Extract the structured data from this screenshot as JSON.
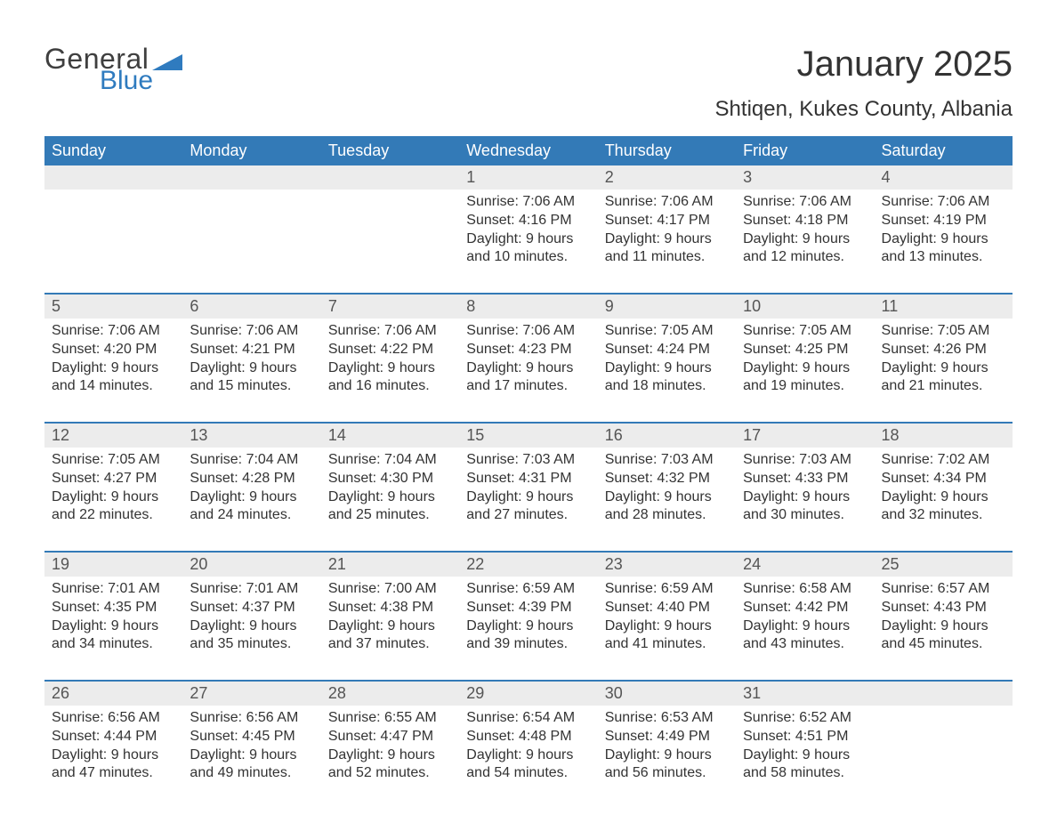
{
  "logo": {
    "line1": "General",
    "line2": "Blue",
    "shape_color": "#2f7bbf"
  },
  "title": {
    "month_year": "January 2025",
    "location": "Shtiqen, Kukes County, Albania"
  },
  "colors": {
    "header_bg": "#337ab7",
    "header_text": "#ffffff",
    "daynum_bg": "#ececec",
    "week_border": "#337ab7",
    "body_text": "#333333",
    "logo_gray": "#3f3f3f",
    "logo_blue": "#2f7bbf",
    "page_bg": "#ffffff"
  },
  "fonts": {
    "title_month_pt": 40,
    "title_location_pt": 24,
    "dow_pt": 18,
    "daynum_pt": 18,
    "body_pt": 16,
    "logo_pt": 32
  },
  "days_of_week": [
    "Sunday",
    "Monday",
    "Tuesday",
    "Wednesday",
    "Thursday",
    "Friday",
    "Saturday"
  ],
  "labels": {
    "sunrise": "Sunrise: ",
    "sunset": "Sunset: ",
    "daylight": "Daylight: "
  },
  "weeks": [
    {
      "days": [
        null,
        null,
        null,
        {
          "n": "1",
          "sunrise": "7:06 AM",
          "sunset": "4:16 PM",
          "daylight": "9 hours and 10 minutes."
        },
        {
          "n": "2",
          "sunrise": "7:06 AM",
          "sunset": "4:17 PM",
          "daylight": "9 hours and 11 minutes."
        },
        {
          "n": "3",
          "sunrise": "7:06 AM",
          "sunset": "4:18 PM",
          "daylight": "9 hours and 12 minutes."
        },
        {
          "n": "4",
          "sunrise": "7:06 AM",
          "sunset": "4:19 PM",
          "daylight": "9 hours and 13 minutes."
        }
      ]
    },
    {
      "days": [
        {
          "n": "5",
          "sunrise": "7:06 AM",
          "sunset": "4:20 PM",
          "daylight": "9 hours and 14 minutes."
        },
        {
          "n": "6",
          "sunrise": "7:06 AM",
          "sunset": "4:21 PM",
          "daylight": "9 hours and 15 minutes."
        },
        {
          "n": "7",
          "sunrise": "7:06 AM",
          "sunset": "4:22 PM",
          "daylight": "9 hours and 16 minutes."
        },
        {
          "n": "8",
          "sunrise": "7:06 AM",
          "sunset": "4:23 PM",
          "daylight": "9 hours and 17 minutes."
        },
        {
          "n": "9",
          "sunrise": "7:05 AM",
          "sunset": "4:24 PM",
          "daylight": "9 hours and 18 minutes."
        },
        {
          "n": "10",
          "sunrise": "7:05 AM",
          "sunset": "4:25 PM",
          "daylight": "9 hours and 19 minutes."
        },
        {
          "n": "11",
          "sunrise": "7:05 AM",
          "sunset": "4:26 PM",
          "daylight": "9 hours and 21 minutes."
        }
      ]
    },
    {
      "days": [
        {
          "n": "12",
          "sunrise": "7:05 AM",
          "sunset": "4:27 PM",
          "daylight": "9 hours and 22 minutes."
        },
        {
          "n": "13",
          "sunrise": "7:04 AM",
          "sunset": "4:28 PM",
          "daylight": "9 hours and 24 minutes."
        },
        {
          "n": "14",
          "sunrise": "7:04 AM",
          "sunset": "4:30 PM",
          "daylight": "9 hours and 25 minutes."
        },
        {
          "n": "15",
          "sunrise": "7:03 AM",
          "sunset": "4:31 PM",
          "daylight": "9 hours and 27 minutes."
        },
        {
          "n": "16",
          "sunrise": "7:03 AM",
          "sunset": "4:32 PM",
          "daylight": "9 hours and 28 minutes."
        },
        {
          "n": "17",
          "sunrise": "7:03 AM",
          "sunset": "4:33 PM",
          "daylight": "9 hours and 30 minutes."
        },
        {
          "n": "18",
          "sunrise": "7:02 AM",
          "sunset": "4:34 PM",
          "daylight": "9 hours and 32 minutes."
        }
      ]
    },
    {
      "days": [
        {
          "n": "19",
          "sunrise": "7:01 AM",
          "sunset": "4:35 PM",
          "daylight": "9 hours and 34 minutes."
        },
        {
          "n": "20",
          "sunrise": "7:01 AM",
          "sunset": "4:37 PM",
          "daylight": "9 hours and 35 minutes."
        },
        {
          "n": "21",
          "sunrise": "7:00 AM",
          "sunset": "4:38 PM",
          "daylight": "9 hours and 37 minutes."
        },
        {
          "n": "22",
          "sunrise": "6:59 AM",
          "sunset": "4:39 PM",
          "daylight": "9 hours and 39 minutes."
        },
        {
          "n": "23",
          "sunrise": "6:59 AM",
          "sunset": "4:40 PM",
          "daylight": "9 hours and 41 minutes."
        },
        {
          "n": "24",
          "sunrise": "6:58 AM",
          "sunset": "4:42 PM",
          "daylight": "9 hours and 43 minutes."
        },
        {
          "n": "25",
          "sunrise": "6:57 AM",
          "sunset": "4:43 PM",
          "daylight": "9 hours and 45 minutes."
        }
      ]
    },
    {
      "days": [
        {
          "n": "26",
          "sunrise": "6:56 AM",
          "sunset": "4:44 PM",
          "daylight": "9 hours and 47 minutes."
        },
        {
          "n": "27",
          "sunrise": "6:56 AM",
          "sunset": "4:45 PM",
          "daylight": "9 hours and 49 minutes."
        },
        {
          "n": "28",
          "sunrise": "6:55 AM",
          "sunset": "4:47 PM",
          "daylight": "9 hours and 52 minutes."
        },
        {
          "n": "29",
          "sunrise": "6:54 AM",
          "sunset": "4:48 PM",
          "daylight": "9 hours and 54 minutes."
        },
        {
          "n": "30",
          "sunrise": "6:53 AM",
          "sunset": "4:49 PM",
          "daylight": "9 hours and 56 minutes."
        },
        {
          "n": "31",
          "sunrise": "6:52 AM",
          "sunset": "4:51 PM",
          "daylight": "9 hours and 58 minutes."
        },
        null
      ]
    }
  ]
}
